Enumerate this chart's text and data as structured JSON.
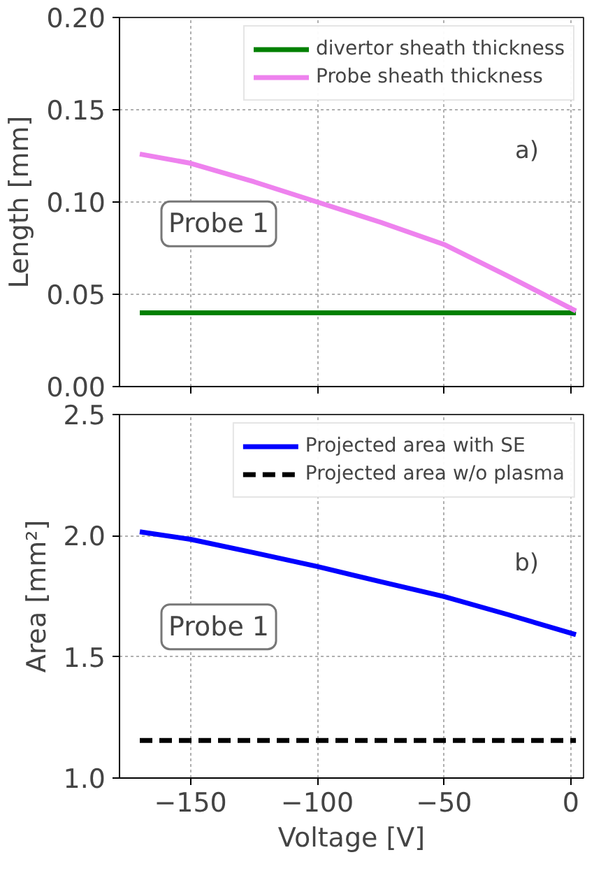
{
  "chart_data": [
    {
      "type": "line",
      "ylabel": "Length [mm]",
      "xlim": [
        -178,
        5
      ],
      "xticks": [
        -150,
        -100,
        -50,
        0
      ],
      "ylim": [
        0,
        0.2
      ],
      "yticks": [
        {
          "value": 0,
          "label": "0.00"
        },
        {
          "value": 0.05,
          "label": "0.05"
        },
        {
          "value": 0.1,
          "label": "0.10"
        },
        {
          "value": 0.15,
          "label": "0.15"
        },
        {
          "value": 0.2,
          "label": "0.20"
        }
      ],
      "tick_labels": "y",
      "grid": true,
      "legend": "top right",
      "annotations": [
        "Probe 1",
        "a)"
      ],
      "series": [
        {
          "name": "divertor sheath thickness",
          "color": "#008000",
          "x": [
            -170,
            2
          ],
          "values": [
            0.04,
            0.04
          ]
        },
        {
          "name": "Probe sheath thickness",
          "color": "#ee82ee",
          "x": [
            -170,
            -150,
            -125,
            -100,
            -75,
            -50,
            -25,
            2
          ],
          "values": [
            0.126,
            0.121,
            0.111,
            0.1,
            0.089,
            0.077,
            0.06,
            0.041
          ]
        }
      ]
    },
    {
      "type": "line",
      "xlabel": "Voltage [V]",
      "ylabel": "Area [mm²]",
      "xlim": [
        -178,
        5
      ],
      "xticks": [
        {
          "value": -150,
          "label": "−150"
        },
        {
          "value": -100,
          "label": "−100"
        },
        {
          "value": -50,
          "label": "−50"
        },
        0
      ],
      "ylim": [
        1.0,
        2.5
      ],
      "yticks": [
        {
          "value": 1.0,
          "label": "1.0"
        },
        1.5,
        {
          "value": 2.0,
          "label": "2.0"
        },
        2.5
      ],
      "grid": true,
      "legend": "top right",
      "annotations": [
        "Probe 1",
        "b)"
      ],
      "series": [
        {
          "name": "Projected area with SE",
          "color": "#0000ff",
          "x": [
            -170,
            -150,
            -125,
            -100,
            -75,
            -50,
            -25,
            2
          ],
          "values": [
            2.016,
            1.985,
            1.93,
            1.873,
            1.81,
            1.749,
            1.675,
            1.592
          ]
        },
        {
          "name": "Projected area w/o plasma",
          "color": "#000000",
          "line_style": "dashed",
          "x": [
            -170,
            2
          ],
          "values": [
            1.155,
            1.155
          ]
        }
      ]
    }
  ]
}
